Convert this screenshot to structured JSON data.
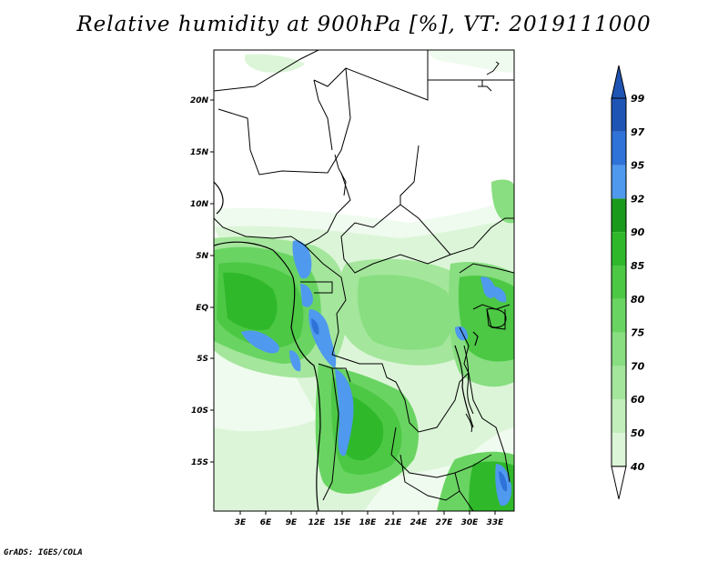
{
  "title": "Relative humidity at 900hPa [%], VT: 2019111000",
  "footer": "GrADS: IGES/COLA",
  "map": {
    "lon_ticks": [
      "3E",
      "6E",
      "9E",
      "12E",
      "15E",
      "18E",
      "21E",
      "24E",
      "27E",
      "30E",
      "33E"
    ],
    "lat_ticks": [
      "20N",
      "15N",
      "10N",
      "5N",
      "EQ",
      "5S",
      "10S",
      "15S"
    ]
  },
  "colorbar": {
    "levels": [
      "40",
      "50",
      "60",
      "70",
      "75",
      "80",
      "85",
      "90",
      "92",
      "95",
      "97",
      "99"
    ],
    "colors": [
      "#f0fbef",
      "#dcf5d8",
      "#c2eebc",
      "#a4e69c",
      "#88de80",
      "#6ad462",
      "#4cc845",
      "#30b82b",
      "#1a9a1a",
      "#4f99ee",
      "#2f72d8",
      "#1e55b5"
    ],
    "bottom_arrow": "#ffffff",
    "top_arrow": "#1e55b5"
  }
}
